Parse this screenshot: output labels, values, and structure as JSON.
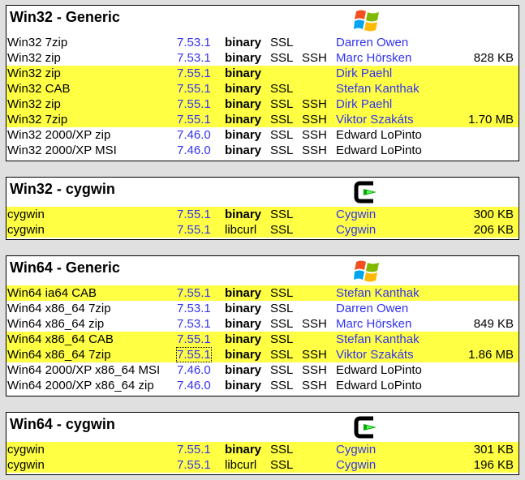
{
  "sections": [
    {
      "title": "Win32 - Generic",
      "icon": "windows-logo-icon",
      "rows": [
        {
          "name": "Win32 7zip",
          "version": "7.53.1",
          "type": "binary",
          "ssl": "SSL",
          "ssh": "",
          "provider": "Darren Owen",
          "provider_link": true,
          "size": "",
          "hl": false
        },
        {
          "name": "Win32 zip",
          "version": "7.53.1",
          "type": "binary",
          "ssl": "SSL",
          "ssh": "SSH",
          "provider": "Marc Hörsken",
          "provider_link": true,
          "size": "828 KB",
          "hl": false
        },
        {
          "name": "Win32 zip",
          "version": "7.55.1",
          "type": "binary",
          "ssl": "",
          "ssh": "",
          "provider": "Dirk Paehl",
          "provider_link": true,
          "size": "",
          "hl": true
        },
        {
          "name": "Win32 CAB",
          "version": "7.55.1",
          "type": "binary",
          "ssl": "SSL",
          "ssh": "",
          "provider": "Stefan Kanthak",
          "provider_link": true,
          "size": "",
          "hl": true
        },
        {
          "name": "Win32 zip",
          "version": "7.55.1",
          "type": "binary",
          "ssl": "SSL",
          "ssh": "SSH",
          "provider": "Dirk Paehl",
          "provider_link": true,
          "size": "",
          "hl": true
        },
        {
          "name": "Win32 7zip",
          "version": "7.55.1",
          "type": "binary",
          "ssl": "SSL",
          "ssh": "SSH",
          "provider": "Viktor Szakáts",
          "provider_link": true,
          "size": "1.70 MB",
          "hl": true
        },
        {
          "name": "Win32 2000/XP zip",
          "version": "7.46.0",
          "type": "binary",
          "ssl": "SSL",
          "ssh": "SSH",
          "provider": "Edward LoPinto",
          "provider_link": false,
          "size": "",
          "hl": false
        },
        {
          "name": "Win32 2000/XP MSI",
          "version": "7.46.0",
          "type": "binary",
          "ssl": "SSL",
          "ssh": "SSH",
          "provider": "Edward LoPinto",
          "provider_link": false,
          "size": "",
          "hl": false
        }
      ]
    },
    {
      "title": "Win32 - cygwin",
      "icon": "cygwin-logo-icon",
      "rows": [
        {
          "name": "cygwin",
          "version": "7.55.1",
          "type": "binary",
          "ssl": "SSL",
          "ssh": "",
          "provider": "Cygwin",
          "provider_link": true,
          "size": "300 KB",
          "hl": true
        },
        {
          "name": "cygwin",
          "version": "7.55.1",
          "type": "libcurl",
          "ssl": "SSL",
          "ssh": "",
          "provider": "Cygwin",
          "provider_link": true,
          "size": "206 KB",
          "hl": true
        }
      ]
    },
    {
      "title": "Win64 - Generic",
      "icon": "windows-logo-icon",
      "rows": [
        {
          "name": "Win64 ia64 CAB",
          "version": "7.55.1",
          "type": "binary",
          "ssl": "SSL",
          "ssh": "",
          "provider": "Stefan Kanthak",
          "provider_link": true,
          "size": "",
          "hl": true
        },
        {
          "name": "Win64 x86_64 7zip",
          "version": "7.53.1",
          "type": "binary",
          "ssl": "SSL",
          "ssh": "",
          "provider": "Darren Owen",
          "provider_link": true,
          "size": "",
          "hl": false
        },
        {
          "name": "Win64 x86_64 zip",
          "version": "7.53.1",
          "type": "binary",
          "ssl": "SSL",
          "ssh": "SSH",
          "provider": "Marc Hörsken",
          "provider_link": true,
          "size": "849 KB",
          "hl": false
        },
        {
          "name": "Win64 x86_64 CAB",
          "version": "7.55.1",
          "type": "binary",
          "ssl": "SSL",
          "ssh": "",
          "provider": "Stefan Kanthak",
          "provider_link": true,
          "size": "",
          "hl": true
        },
        {
          "name": "Win64 x86_64 7zip",
          "version": "7.55.1",
          "type": "binary",
          "ssl": "SSL",
          "ssh": "SSH",
          "provider": "Viktor Szakáts",
          "provider_link": true,
          "size": "1.86 MB",
          "hl": true,
          "focus": true
        },
        {
          "name": "Win64 2000/XP x86_64 MSI",
          "version": "7.46.0",
          "type": "binary",
          "ssl": "SSL",
          "ssh": "SSH",
          "provider": "Edward LoPinto",
          "provider_link": false,
          "size": "",
          "hl": false
        },
        {
          "name": "Win64 2000/XP x86_64 zip",
          "version": "7.46.0",
          "type": "binary",
          "ssl": "SSL",
          "ssh": "SSH",
          "provider": "Edward LoPinto",
          "provider_link": false,
          "size": "",
          "hl": false
        }
      ]
    },
    {
      "title": "Win64 - cygwin",
      "icon": "cygwin-logo-icon",
      "rows": [
        {
          "name": "cygwin",
          "version": "7.55.1",
          "type": "binary",
          "ssl": "SSL",
          "ssh": "",
          "provider": "Cygwin",
          "provider_link": true,
          "size": "301 KB",
          "hl": true
        },
        {
          "name": "cygwin",
          "version": "7.55.1",
          "type": "libcurl",
          "ssl": "SSL",
          "ssh": "",
          "provider": "Cygwin",
          "provider_link": true,
          "size": "196 KB",
          "hl": true
        }
      ]
    }
  ]
}
